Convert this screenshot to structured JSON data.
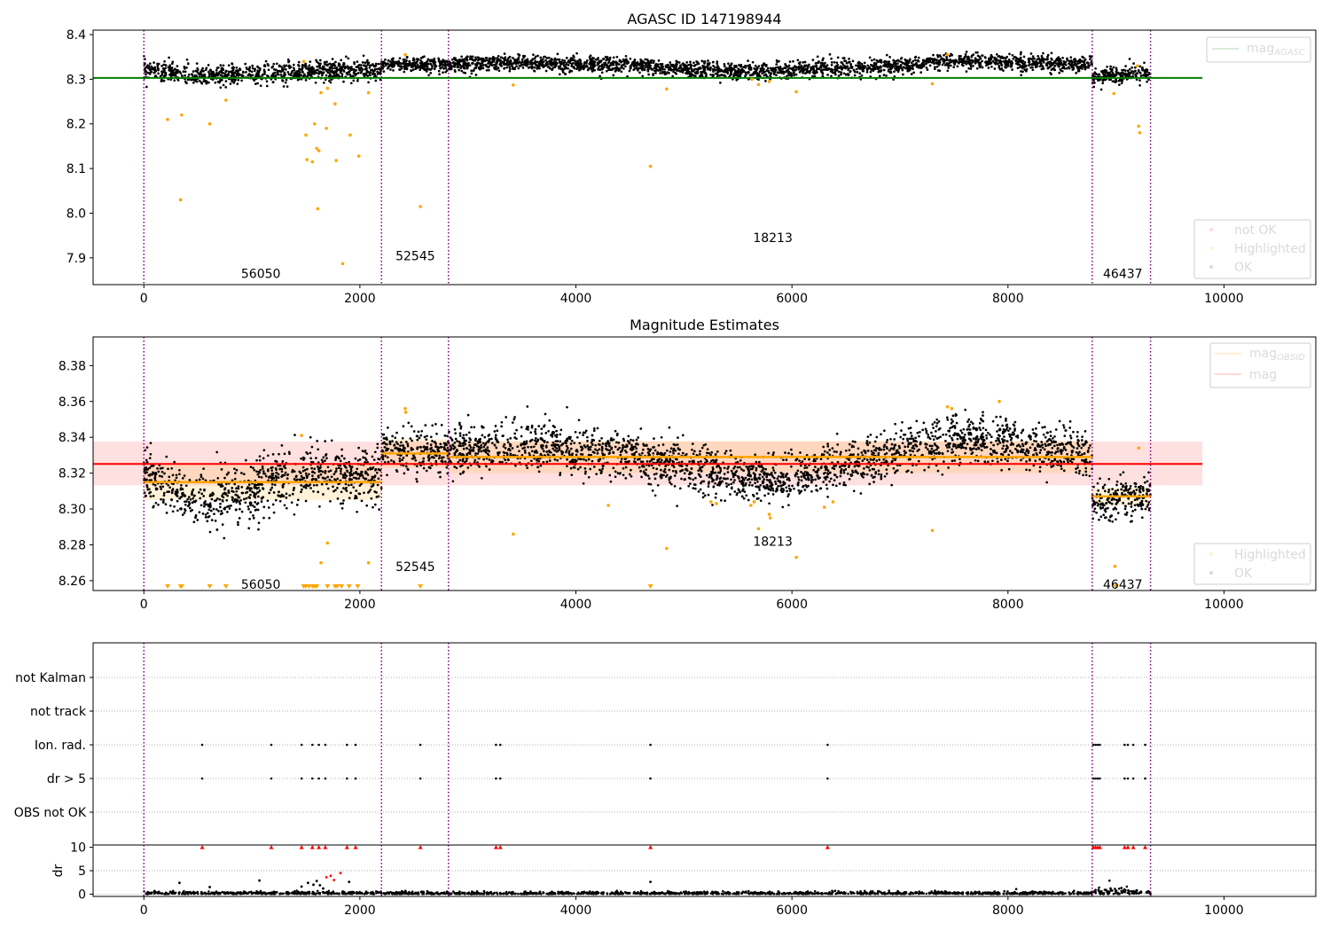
{
  "chart_data": [
    {
      "type": "scatter",
      "title": "AGASC ID 147198944",
      "xlim": [
        -470,
        10850
      ],
      "ylim": [
        7.84,
        8.41
      ],
      "xticks": [
        0,
        2000,
        4000,
        6000,
        8000,
        10000
      ],
      "yticks": [
        7.9,
        8.0,
        8.1,
        8.2,
        8.3,
        8.4
      ],
      "reference_lines": [
        {
          "label": "mag",
          "label_sub": "AGASC",
          "value": 8.303,
          "x_range": [
            -470,
            9800
          ],
          "color": "#008000"
        }
      ],
      "series": [
        {
          "name": "not OK",
          "color": "#ff0000"
        },
        {
          "name": "Highlighted",
          "color": "#ffa500",
          "points": [
            [
              220,
              8.21
            ],
            [
              340,
              8.03
            ],
            [
              350,
              8.22
            ],
            [
              610,
              8.2
            ],
            [
              760,
              8.253
            ],
            [
              1480,
              8.34
            ],
            [
              1500,
              8.175
            ],
            [
              1510,
              8.12
            ],
            [
              1560,
              8.115
            ],
            [
              1580,
              8.2
            ],
            [
              1600,
              8.145
            ],
            [
              1610,
              8.01
            ],
            [
              1620,
              8.14
            ],
            [
              1640,
              8.27
            ],
            [
              1690,
              8.19
            ],
            [
              1700,
              8.28
            ],
            [
              1770,
              8.245
            ],
            [
              1780,
              8.118
            ],
            [
              1840,
              7.887
            ],
            [
              1910,
              8.175
            ],
            [
              1990,
              8.128
            ],
            [
              2080,
              8.27
            ],
            [
              2420,
              8.355
            ],
            [
              2560,
              8.015
            ],
            [
              3420,
              8.287
            ],
            [
              4690,
              8.105
            ],
            [
              4840,
              8.278
            ],
            [
              5630,
              8.3
            ],
            [
              5690,
              8.288
            ],
            [
              5790,
              8.295
            ],
            [
              6040,
              8.272
            ],
            [
              7300,
              8.29
            ],
            [
              7440,
              8.355
            ],
            [
              8980,
              8.268
            ],
            [
              9200,
              8.33
            ],
            [
              9210,
              8.195
            ],
            [
              9220,
              8.18
            ]
          ]
        },
        {
          "name": "OK",
          "color": "#000000"
        }
      ],
      "ok_segments": [
        {
          "x": [
            0,
            2200
          ],
          "trend": [
            [
              0,
              8.322
            ],
            [
              500,
              8.306
            ],
            [
              1000,
              8.311
            ],
            [
              1500,
              8.318
            ],
            [
              2200,
              8.322
            ]
          ],
          "spread": 0.011
        },
        {
          "x": [
            2200,
            2820
          ],
          "trend": [
            [
              2200,
              8.332
            ],
            [
              2820,
              8.332
            ]
          ],
          "spread": 0.008
        },
        {
          "x": [
            2820,
            8780
          ],
          "trend": [
            [
              2820,
              8.334
            ],
            [
              3500,
              8.337
            ],
            [
              4500,
              8.33
            ],
            [
              5500,
              8.317
            ],
            [
              6200,
              8.322
            ],
            [
              7000,
              8.33
            ],
            [
              7500,
              8.342
            ],
            [
              8000,
              8.338
            ],
            [
              8780,
              8.332
            ]
          ],
          "spread": 0.009
        },
        {
          "x": [
            8780,
            9320
          ],
          "trend": [
            [
              8780,
              8.303
            ],
            [
              9320,
              8.316
            ]
          ],
          "spread": 0.009
        }
      ],
      "obsids": [
        {
          "id": "56050",
          "x": 900,
          "y": 7.855
        },
        {
          "id": "52545",
          "x": 2330,
          "y": 7.895
        },
        {
          "id": "18213",
          "x": 5640,
          "y": 7.935
        },
        {
          "id": "46437",
          "x": 8880,
          "y": 7.855
        }
      ],
      "vlines": [
        0,
        2200,
        2820,
        8780,
        9320
      ],
      "legend": [
        "upper-right",
        "lower-right"
      ]
    },
    {
      "type": "scatter",
      "title": "Magnitude Estimates",
      "xlim": [
        -470,
        10850
      ],
      "ylim": [
        8.2545,
        8.396
      ],
      "xticks": [
        0,
        2000,
        4000,
        6000,
        8000,
        10000
      ],
      "yticks": [
        8.26,
        8.28,
        8.3,
        8.32,
        8.34,
        8.36,
        8.38
      ],
      "reference_lines": [
        {
          "label": "mag",
          "value": 8.3251,
          "x_range": [
            -470,
            9800
          ],
          "band": [
            8.3132,
            8.3376
          ],
          "color": "#ff0000"
        }
      ],
      "obsid_mags": {
        "label": "mag",
        "label_sub": "OBSID",
        "color": "#ffa500",
        "segments": [
          {
            "x": [
              0,
              2200
            ],
            "value": 8.315,
            "band": [
              8.305,
              8.325
            ]
          },
          {
            "x": [
              2200,
              2820
            ],
            "value": 8.331,
            "band": [
              8.323,
              8.339
            ]
          },
          {
            "x": [
              2820,
              8780
            ],
            "value": 8.329,
            "band": [
              8.32,
              8.338
            ]
          },
          {
            "x": [
              8780,
              9320
            ],
            "value": 8.307,
            "band": [
              8.302,
              8.312
            ]
          }
        ]
      },
      "series": [
        {
          "name": "Highlighted",
          "color": "#ffa500",
          "points": [
            [
              1460,
              8.341
            ],
            [
              1640,
              8.27
            ],
            [
              1700,
              8.281
            ],
            [
              2080,
              8.27
            ],
            [
              2420,
              8.356
            ],
            [
              2425,
              8.354
            ],
            [
              3420,
              8.286
            ],
            [
              4300,
              8.302
            ],
            [
              4840,
              8.278
            ],
            [
              5250,
              8.304
            ],
            [
              5300,
              8.303
            ],
            [
              5620,
              8.302
            ],
            [
              5650,
              8.304
            ],
            [
              5690,
              8.289
            ],
            [
              5790,
              8.297
            ],
            [
              5800,
              8.295
            ],
            [
              6040,
              8.273
            ],
            [
              6300,
              8.301
            ],
            [
              6380,
              8.304
            ],
            [
              7300,
              8.288
            ],
            [
              7440,
              8.357
            ],
            [
              7480,
              8.356
            ],
            [
              7920,
              8.36
            ],
            [
              8990,
              8.268
            ],
            [
              9210,
              8.334
            ]
          ],
          "below_axis_x": [
            220,
            340,
            350,
            610,
            760,
            1480,
            1500,
            1530,
            1560,
            1580,
            1600,
            1700,
            1770,
            1790,
            1830,
            1900,
            1980,
            2560,
            4690,
            9000
          ]
        },
        {
          "name": "OK",
          "color": "#000000"
        }
      ],
      "ok_segments": [
        {
          "x": [
            0,
            2200
          ],
          "trend": [
            [
              0,
              8.32
            ],
            [
              300,
              8.31
            ],
            [
              600,
              8.305
            ],
            [
              900,
              8.306
            ],
            [
              1200,
              8.315
            ],
            [
              1600,
              8.32
            ],
            [
              2200,
              8.318
            ]
          ],
          "spread": 0.008
        },
        {
          "x": [
            2200,
            2820
          ],
          "trend": [
            [
              2200,
              8.334
            ],
            [
              2820,
              8.33
            ]
          ],
          "spread": 0.006
        },
        {
          "x": [
            2820,
            8780
          ],
          "trend": [
            [
              2820,
              8.332
            ],
            [
              3500,
              8.336
            ],
            [
              4500,
              8.33
            ],
            [
              5200,
              8.32
            ],
            [
              5800,
              8.315
            ],
            [
              6300,
              8.322
            ],
            [
              7000,
              8.332
            ],
            [
              7500,
              8.34
            ],
            [
              8000,
              8.337
            ],
            [
              8780,
              8.33
            ]
          ],
          "spread": 0.0065
        },
        {
          "x": [
            8780,
            9320
          ],
          "trend": [
            [
              8780,
              8.302
            ],
            [
              9320,
              8.31
            ]
          ],
          "spread": 0.006
        }
      ],
      "obsids": [
        {
          "id": "56050",
          "x": 900,
          "y": 8.2555
        },
        {
          "id": "52545",
          "x": 2330,
          "y": 8.2655
        },
        {
          "id": "18213",
          "x": 5640,
          "y": 8.2795
        },
        {
          "id": "46437",
          "x": 8880,
          "y": 8.2555
        }
      ],
      "vlines": [
        0,
        2200,
        2820,
        8780,
        9320
      ],
      "legend": [
        "upper-right",
        "lower-right"
      ]
    },
    {
      "type": "scatter",
      "xlim": [
        -470,
        10850
      ],
      "categories": [
        "not Kalman",
        "not track",
        "Ion. rad.",
        "dr > 5",
        "OBS not OK"
      ],
      "flag_events_x": [
        540,
        1180,
        1460,
        1560,
        1620,
        1680,
        1880,
        1960,
        2560,
        3260,
        3300,
        4690,
        6330,
        8790,
        8810,
        8830,
        8850,
        9080,
        9110,
        9160,
        9270
      ],
      "flagged_rows": [
        "Ion. rad.",
        "dr > 5"
      ],
      "vlines": [
        0,
        2200,
        2820,
        8780,
        9320
      ]
    },
    {
      "type": "scatter",
      "xlim": [
        -470,
        10850
      ],
      "ylim": [
        -0.5,
        10.5
      ],
      "ylabel": "dr",
      "xticks": [
        0,
        2000,
        4000,
        6000,
        8000,
        10000
      ],
      "yticks": [
        0,
        5,
        10
      ],
      "clipped_points_x": [
        540,
        1180,
        1460,
        1560,
        1620,
        1680,
        1880,
        1960,
        2560,
        3260,
        3300,
        4690,
        6330,
        8790,
        8810,
        8830,
        8850,
        9080,
        9110,
        9160,
        9270
      ],
      "clipped_value": 10,
      "outlier_points": [
        {
          "x": 330,
          "y": 2.4,
          "ok": true
        },
        {
          "x": 610,
          "y": 1.5,
          "ok": true
        },
        {
          "x": 1070,
          "y": 2.9,
          "ok": true
        },
        {
          "x": 1460,
          "y": 1.6,
          "ok": true
        },
        {
          "x": 1520,
          "y": 2.4,
          "ok": true
        },
        {
          "x": 1570,
          "y": 2.0,
          "ok": true
        },
        {
          "x": 1600,
          "y": 2.8,
          "ok": true
        },
        {
          "x": 1630,
          "y": 1.9,
          "ok": true
        },
        {
          "x": 1660,
          "y": 1.2,
          "ok": true
        },
        {
          "x": 1690,
          "y": 3.6,
          "ok": false
        },
        {
          "x": 1730,
          "y": 3.9,
          "ok": false
        },
        {
          "x": 1760,
          "y": 3.0,
          "ok": false
        },
        {
          "x": 1820,
          "y": 4.5,
          "ok": false
        },
        {
          "x": 1900,
          "y": 2.6,
          "ok": true
        },
        {
          "x": 4690,
          "y": 2.6,
          "ok": true
        },
        {
          "x": 8950,
          "y": 1.2,
          "ok": true
        },
        {
          "x": 9050,
          "y": 1.3,
          "ok": true
        }
      ],
      "vlines": [
        0,
        2200,
        2820,
        8780,
        9320
      ]
    }
  ]
}
